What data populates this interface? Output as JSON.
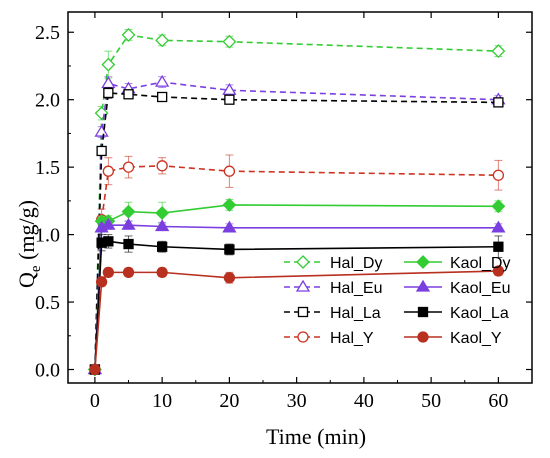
{
  "chart_data": {
    "type": "line",
    "title": "",
    "xlabel": "Time (min)",
    "ylabel_main": "Q",
    "ylabel_sub": "e",
    "ylabel_rest": " (mg/g)",
    "xlim": [
      -4,
      65
    ],
    "ylim": [
      -0.1,
      2.65
    ],
    "xticks": [
      0,
      10,
      20,
      30,
      40,
      50,
      60
    ],
    "yticks": [
      0.0,
      0.5,
      1.0,
      1.5,
      2.0,
      2.5
    ],
    "ytick_labels": [
      "0.0",
      "0.5",
      "1.0",
      "1.5",
      "2.0",
      "2.5"
    ],
    "legend_position": "bottom-right",
    "x": [
      0,
      1,
      2,
      5,
      10,
      20,
      60
    ],
    "series": [
      {
        "name": "Hal_Dy",
        "color": "#33cc33",
        "dashed": true,
        "marker": "diamond",
        "filled": false,
        "values": [
          0.0,
          1.9,
          2.26,
          2.48,
          2.44,
          2.43,
          2.36
        ],
        "errors": [
          0,
          0.05,
          0.1,
          0.04,
          0.04,
          0.04,
          0.04
        ]
      },
      {
        "name": "Hal_Eu",
        "color": "#7b3fe0",
        "dashed": true,
        "marker": "triangle",
        "filled": false,
        "values": [
          0.0,
          1.76,
          2.12,
          2.08,
          2.13,
          2.07,
          2.0
        ],
        "errors": [
          0,
          0.04,
          0.05,
          0.04,
          0.04,
          0.04,
          0.03
        ]
      },
      {
        "name": "Hal_La",
        "color": "#000000",
        "dashed": true,
        "marker": "square",
        "filled": false,
        "values": [
          0.0,
          1.62,
          2.05,
          2.04,
          2.02,
          2.0,
          1.98
        ],
        "errors": [
          0,
          0.03,
          0.04,
          0.03,
          0.03,
          0.03,
          0.03
        ]
      },
      {
        "name": "Hal_Y",
        "color": "#cc3322",
        "dashed": true,
        "marker": "circle",
        "filled": false,
        "values": [
          0.0,
          1.11,
          1.47,
          1.5,
          1.51,
          1.47,
          1.44
        ],
        "errors": [
          0,
          0.08,
          0.1,
          0.08,
          0.06,
          0.12,
          0.11
        ]
      },
      {
        "name": "Kaol_Dy",
        "color": "#33cc33",
        "dashed": false,
        "marker": "diamond",
        "filled": true,
        "values": [
          0.0,
          1.1,
          1.1,
          1.17,
          1.16,
          1.22,
          1.21
        ],
        "errors": [
          0,
          0.03,
          0.04,
          0.07,
          0.08,
          0.04,
          0.04
        ]
      },
      {
        "name": "Kaol_Eu",
        "color": "#7b3fe0",
        "dashed": false,
        "marker": "triangle",
        "filled": true,
        "values": [
          0.0,
          1.05,
          1.07,
          1.07,
          1.06,
          1.05,
          1.05
        ],
        "errors": [
          0,
          0.03,
          0.03,
          0.03,
          0.03,
          0.03,
          0.03
        ]
      },
      {
        "name": "Kaol_La",
        "color": "#000000",
        "dashed": false,
        "marker": "square",
        "filled": true,
        "values": [
          0.0,
          0.94,
          0.95,
          0.93,
          0.91,
          0.89,
          0.91
        ],
        "errors": [
          0,
          0.06,
          0.05,
          0.06,
          0.04,
          0.04,
          0.08
        ]
      },
      {
        "name": "Kaol_Y",
        "color": "#b83020",
        "dashed": false,
        "marker": "circle",
        "filled": true,
        "values": [
          0.0,
          0.65,
          0.72,
          0.72,
          0.72,
          0.68,
          0.73
        ],
        "errors": [
          0,
          0.03,
          0.03,
          0.03,
          0.03,
          0.04,
          0.03
        ]
      }
    ]
  }
}
